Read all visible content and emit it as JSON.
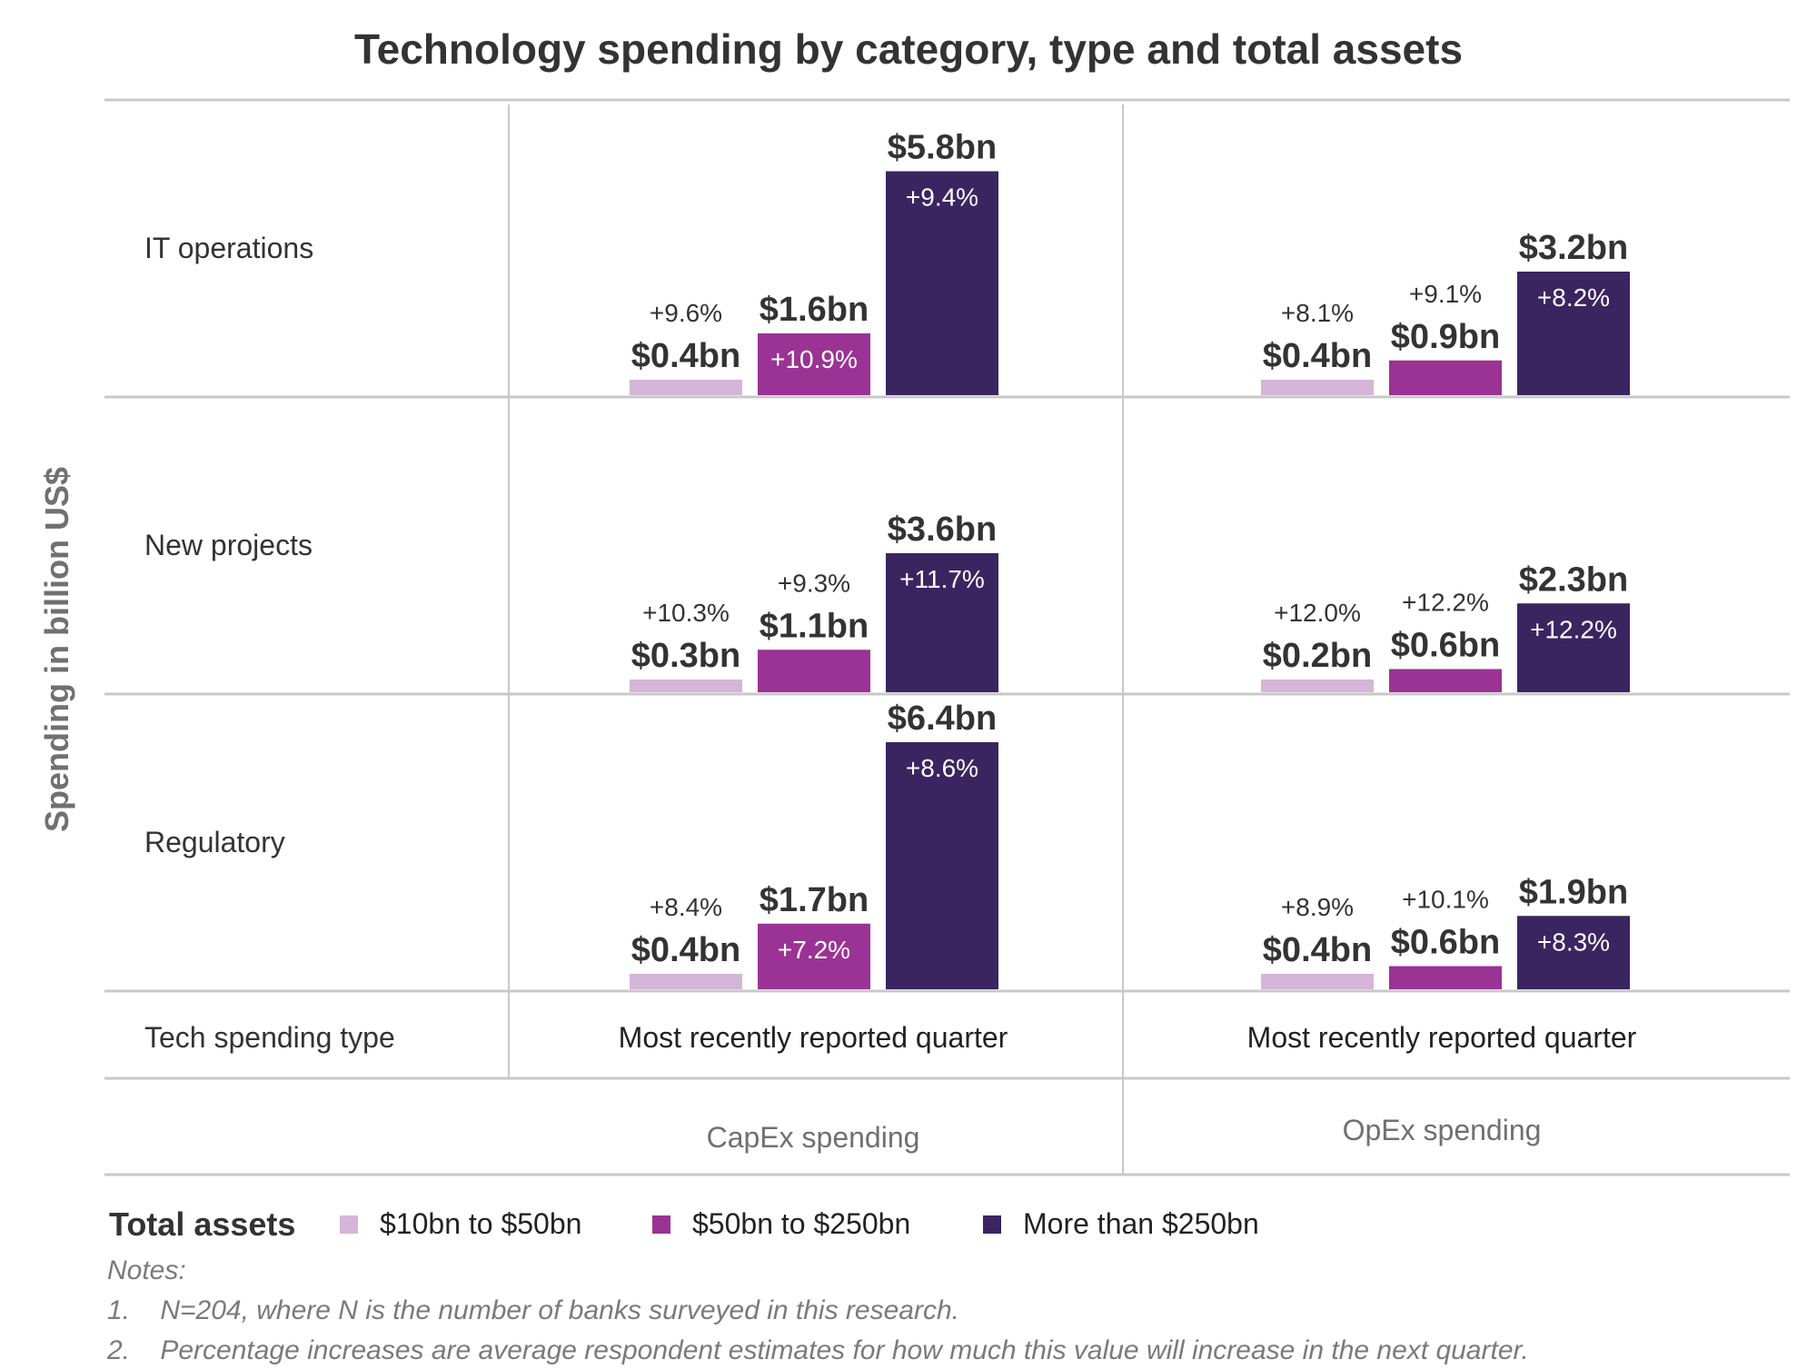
{
  "chart_data": {
    "type": "bar",
    "title": "Technology spending by category, type and total assets",
    "ylabel": "Spending in billion US$",
    "row_header": "Tech spending type",
    "rows": [
      "IT operations",
      "New projects",
      "Regulatory"
    ],
    "columns": [
      {
        "header": "Most recently reported quarter",
        "subheader": "CapEx spending"
      },
      {
        "header": "Most recently reported quarter",
        "subheader": "OpEx spending"
      }
    ],
    "legend_title": "Total assets",
    "series": [
      {
        "name": "$10bn to $50bn",
        "color": "#d5b5d8"
      },
      {
        "name": "$50bn to $250bn",
        "color": "#9a3393"
      },
      {
        "name": "More than $250bn",
        "color": "#3a2561"
      }
    ],
    "cells": [
      [
        {
          "values": [
            0.4,
            1.6,
            5.8
          ],
          "labels": [
            "$0.4bn",
            "$1.6bn",
            "$5.8bn"
          ],
          "pct": [
            "+9.6%",
            "+10.9%",
            "+9.4%"
          ]
        },
        {
          "values": [
            0.4,
            0.9,
            3.2
          ],
          "labels": [
            "$0.4bn",
            "$0.9bn",
            "$3.2bn"
          ],
          "pct": [
            "+8.1%",
            "+9.1%",
            "+8.2%"
          ]
        }
      ],
      [
        {
          "values": [
            0.3,
            1.1,
            3.6
          ],
          "labels": [
            "$0.3bn",
            "$1.1bn",
            "$3.6bn"
          ],
          "pct": [
            "+10.3%",
            "+9.3%",
            "+11.7%"
          ]
        },
        {
          "values": [
            0.2,
            0.6,
            2.3
          ],
          "labels": [
            "$0.2bn",
            "$0.6bn",
            "$2.3bn"
          ],
          "pct": [
            "+12.0%",
            "+12.2%",
            "+12.2%"
          ]
        }
      ],
      [
        {
          "values": [
            0.4,
            1.7,
            6.4
          ],
          "labels": [
            "$0.4bn",
            "$1.7bn",
            "$6.4bn"
          ],
          "pct": [
            "+8.4%",
            "+7.2%",
            "+8.6%"
          ]
        },
        {
          "values": [
            0.4,
            0.6,
            1.9
          ],
          "labels": [
            "$0.4bn",
            "$0.6bn",
            "$1.9bn"
          ],
          "pct": [
            "+8.9%",
            "+10.1%",
            "+8.3%"
          ]
        }
      ]
    ],
    "notes": {
      "heading": "Notes:",
      "items": [
        "1.    N=204, where N is the number of banks surveyed in this research.",
        "2.    Percentage increases are average respondent estimates for how much this value will increase in the next quarter."
      ]
    }
  }
}
